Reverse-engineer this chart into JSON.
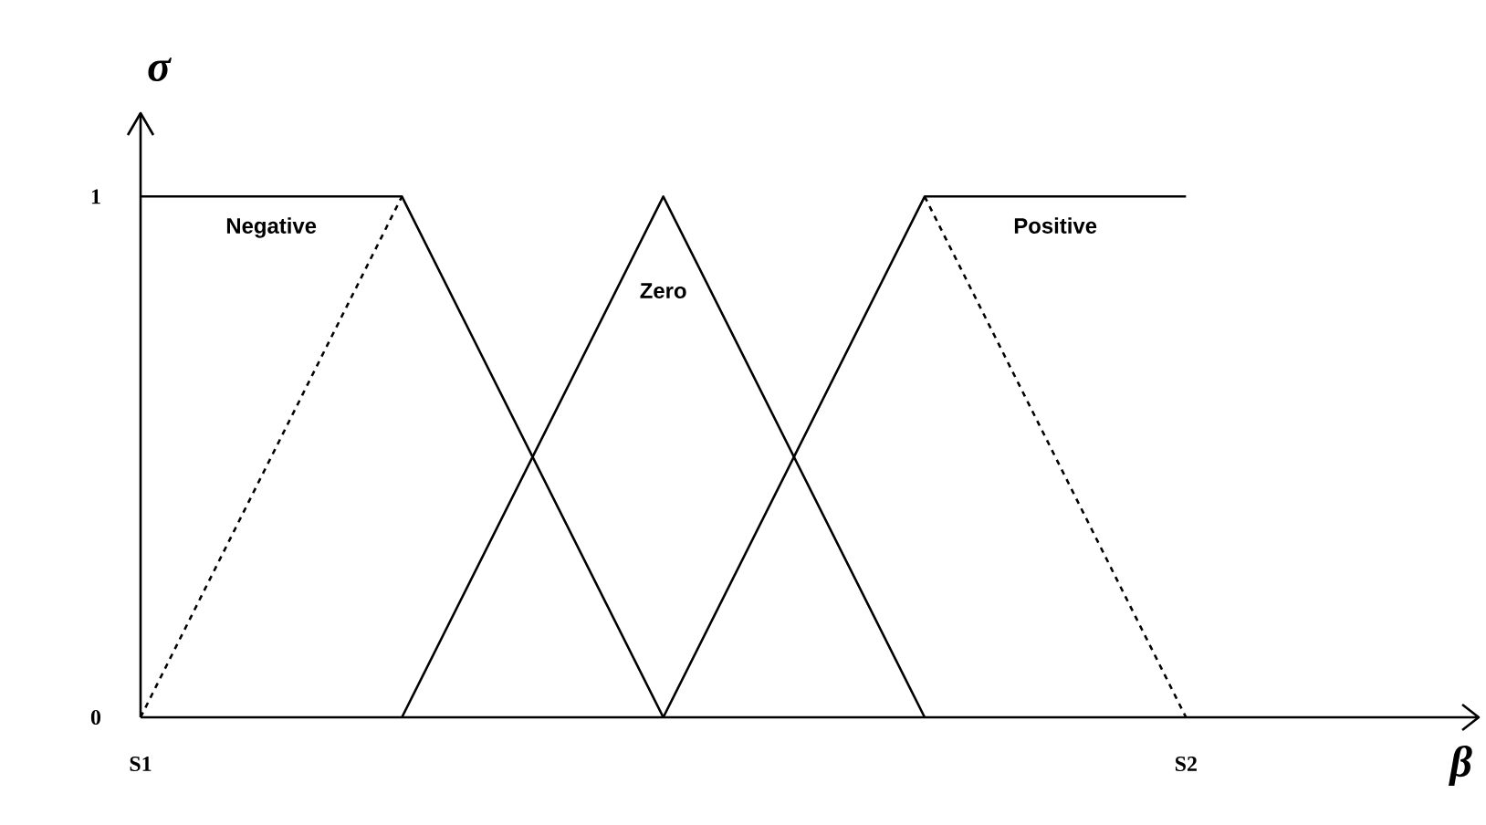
{
  "chart_data": {
    "type": "line",
    "xlabel": "β",
    "ylabel": "σ",
    "categories": [
      "S1",
      null,
      null,
      null,
      "S2"
    ],
    "ylim": [
      0,
      1.16
    ],
    "yticks": [
      0,
      1
    ],
    "marker": "none",
    "line_style": "solid",
    "series": [
      {
        "name": "Negative",
        "color": "#000000",
        "values": [
          1,
          1,
          0,
          null,
          null
        ]
      },
      {
        "color": "#000000",
        "line_style": "dashed",
        "values": [
          0,
          1,
          null,
          null,
          null
        ]
      },
      {
        "name": "Zero",
        "color": "#000000",
        "values": [
          null,
          0,
          1,
          0,
          null
        ]
      },
      {
        "name": "Positive",
        "color": "#000000",
        "values": [
          null,
          null,
          0,
          1,
          1
        ]
      },
      {
        "color": "#000000",
        "line_style": "dashed",
        "values": [
          null,
          null,
          null,
          1,
          0
        ]
      }
    ]
  }
}
